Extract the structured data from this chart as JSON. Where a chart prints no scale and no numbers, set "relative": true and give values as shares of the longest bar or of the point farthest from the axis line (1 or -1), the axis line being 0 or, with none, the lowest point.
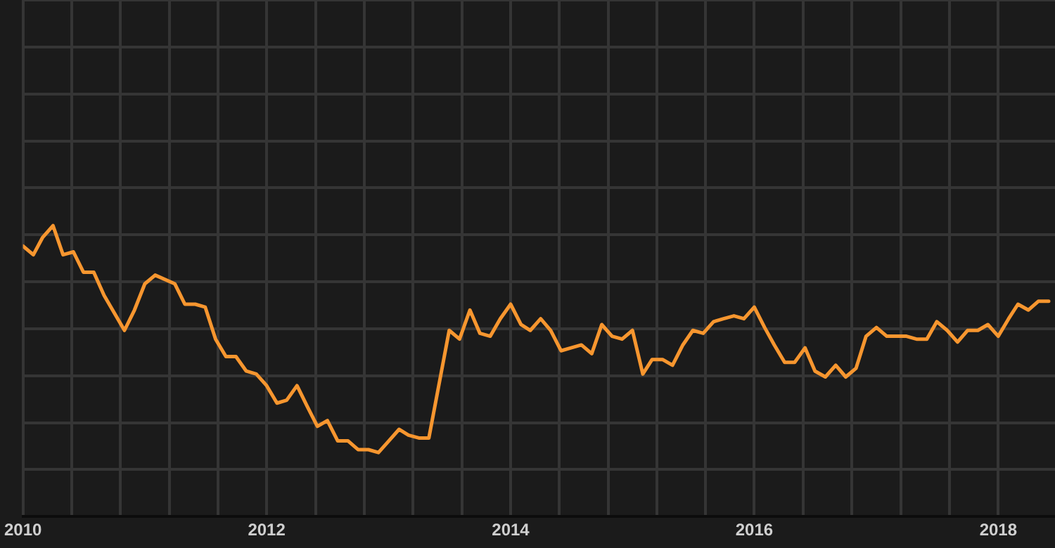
{
  "chart_data": {
    "type": "line",
    "relative": true,
    "grid": true,
    "legend": false,
    "marker": "none",
    "line_style": "solid",
    "xlim": [
      "2010-01",
      "2018-06-20"
    ],
    "xticks": [
      {
        "value": "2010-01-01",
        "label": "2010"
      },
      {
        "value": "2010-05-27",
        "label": null
      },
      {
        "value": "2010-10-20",
        "label": null
      },
      {
        "value": "2011-03-15",
        "label": null
      },
      {
        "value": "2011-08-08",
        "label": null
      },
      {
        "value": "2012-01-01",
        "label": "2012"
      },
      {
        "value": "2012-05-27",
        "label": null
      },
      {
        "value": "2012-10-20",
        "label": null
      },
      {
        "value": "2013-03-15",
        "label": null
      },
      {
        "value": "2013-08-08",
        "label": null
      },
      {
        "value": "2014-01-01",
        "label": "2014"
      },
      {
        "value": "2014-05-27",
        "label": null
      },
      {
        "value": "2014-10-20",
        "label": null
      },
      {
        "value": "2015-03-15",
        "label": null
      },
      {
        "value": "2015-08-08",
        "label": null
      },
      {
        "value": "2016-01-01",
        "label": "2016"
      },
      {
        "value": "2016-05-27",
        "label": null
      },
      {
        "value": "2016-10-20",
        "label": null
      },
      {
        "value": "2017-03-15",
        "label": null
      },
      {
        "value": "2017-08-08",
        "label": null
      },
      {
        "value": "2018-01-01",
        "label": "2018"
      }
    ],
    "series": [
      {
        "color": "#f7962f",
        "x": [
          "2010-01",
          "2010-02",
          "2010-03",
          "2010-04",
          "2010-05",
          "2010-06",
          "2010-07",
          "2010-08",
          "2010-09",
          "2010-11",
          "2010-12",
          "2011-01",
          "2011-02",
          "2011-04",
          "2011-05",
          "2011-06",
          "2011-07",
          "2011-08",
          "2011-09",
          "2011-10",
          "2011-11",
          "2011-12",
          "2012-01",
          "2012-02",
          "2012-03",
          "2012-04",
          "2012-05",
          "2012-06",
          "2012-07",
          "2012-08",
          "2012-09",
          "2012-10",
          "2012-11",
          "2012-12",
          "2013-01",
          "2013-02",
          "2013-03",
          "2013-04",
          "2013-05",
          "2013-07",
          "2013-08",
          "2013-09",
          "2013-10",
          "2013-11",
          "2013-12",
          "2014-01",
          "2014-02",
          "2014-03",
          "2014-04",
          "2014-05",
          "2014-06",
          "2014-07",
          "2014-08",
          "2014-09",
          "2014-10",
          "2014-11",
          "2014-12",
          "2015-01",
          "2015-02",
          "2015-03",
          "2015-04",
          "2015-05",
          "2015-06",
          "2015-07",
          "2015-08",
          "2015-09",
          "2015-10",
          "2015-11",
          "2015-12",
          "2016-01",
          "2016-02",
          "2016-03",
          "2016-04",
          "2016-05",
          "2016-06",
          "2016-07",
          "2016-08",
          "2016-09",
          "2016-10",
          "2016-11",
          "2016-12",
          "2017-01",
          "2017-02",
          "2017-03",
          "2017-04",
          "2017-05",
          "2017-06",
          "2017-07",
          "2017-08",
          "2017-09",
          "2017-10",
          "2017-11",
          "2017-12",
          "2018-01",
          "2018-02",
          "2018-03",
          "2018-04",
          "2018-05",
          "2018-06"
        ],
        "values": [
          0.93,
          0.9,
          0.96,
          1.0,
          0.9,
          0.91,
          0.84,
          0.84,
          0.76,
          0.64,
          0.71,
          0.8,
          0.83,
          0.8,
          0.73,
          0.73,
          0.72,
          0.61,
          0.55,
          0.55,
          0.5,
          0.49,
          0.45,
          0.39,
          0.4,
          0.45,
          0.38,
          0.31,
          0.33,
          0.26,
          0.26,
          0.23,
          0.23,
          0.22,
          0.26,
          0.3,
          0.28,
          0.27,
          0.27,
          0.64,
          0.61,
          0.71,
          0.63,
          0.62,
          0.68,
          0.73,
          0.66,
          0.64,
          0.68,
          0.64,
          0.57,
          0.58,
          0.59,
          0.56,
          0.66,
          0.62,
          0.61,
          0.64,
          0.49,
          0.54,
          0.54,
          0.52,
          0.59,
          0.64,
          0.63,
          0.67,
          0.68,
          0.69,
          0.68,
          0.72,
          0.65,
          0.59,
          0.53,
          0.53,
          0.58,
          0.5,
          0.48,
          0.52,
          0.48,
          0.51,
          0.62,
          0.65,
          0.62,
          0.62,
          0.62,
          0.61,
          0.61,
          0.67,
          0.64,
          0.6,
          0.64,
          0.64,
          0.66,
          0.62,
          0.68,
          0.73,
          0.71,
          0.74,
          0.74
        ]
      }
    ]
  }
}
